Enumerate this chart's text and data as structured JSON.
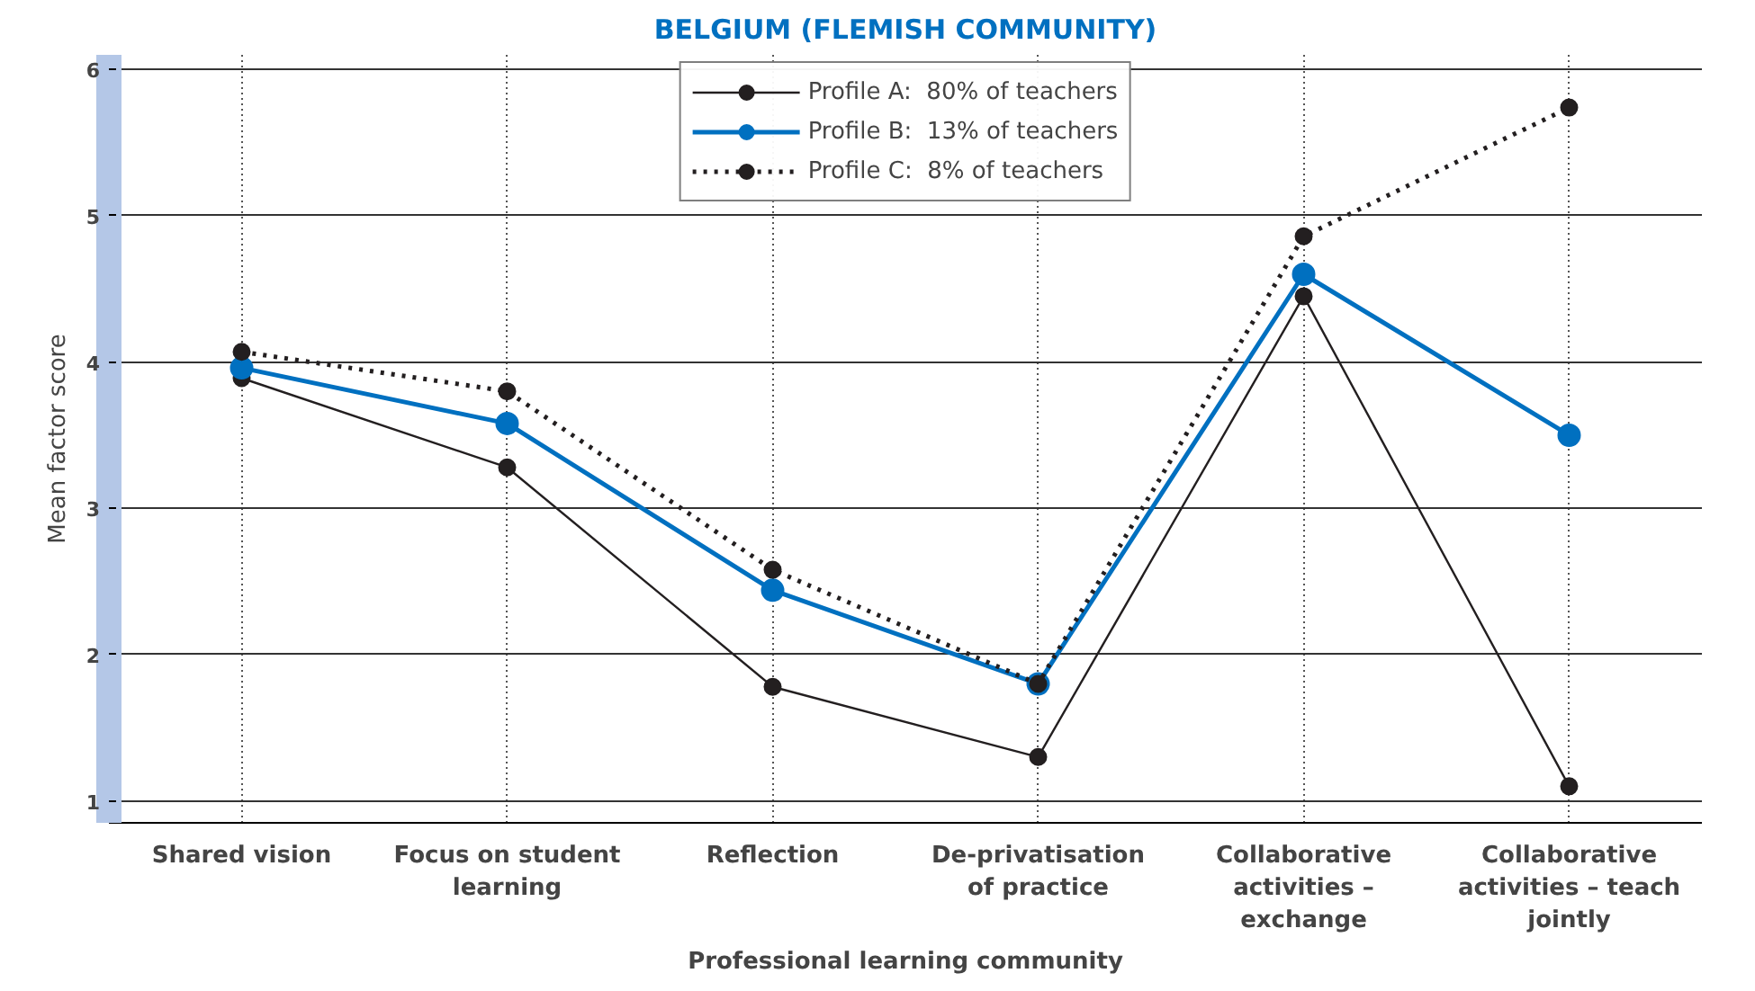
{
  "chart_data": {
    "type": "line",
    "title": "BELGIUM (FLEMISH COMMUNITY)",
    "xlabel": "Professional learning community",
    "ylabel": "Mean factor score",
    "categories": [
      "Shared vision",
      "Focus on student learning",
      "Reflection",
      "De-privatisation of practice",
      "Collaborative activities – exchange",
      "Collaborative activities – teach jointly"
    ],
    "ylim": [
      0.85,
      6.1
    ],
    "yticks": [
      1,
      2,
      3,
      4,
      5,
      6
    ],
    "grid": true,
    "legend": "top",
    "marker": "circle",
    "series": [
      {
        "name": "Profile A:  80% of teachers",
        "color": "#231f20",
        "line_style": "solid",
        "values": [
          3.89,
          3.28,
          1.78,
          1.3,
          4.45,
          1.1
        ]
      },
      {
        "name": "Profile B:  13% of teachers",
        "color": "#0070c0",
        "line_style": "solid",
        "values": [
          3.96,
          3.58,
          2.44,
          1.8,
          4.6,
          3.5
        ]
      },
      {
        "name": "Profile C:  8% of teachers",
        "color": "#231f20",
        "line_style": "dotted",
        "values": [
          4.07,
          3.8,
          2.58,
          1.8,
          4.86,
          5.74
        ]
      }
    ]
  }
}
